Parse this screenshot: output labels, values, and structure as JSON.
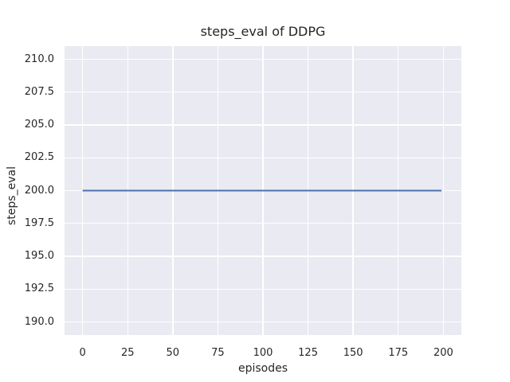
{
  "figure": {
    "title": "steps_eval of DDPG",
    "xlabel": "episodes",
    "ylabel": "steps_eval"
  },
  "chart_data": {
    "type": "line",
    "title": "steps_eval of DDPG",
    "xlabel": "episodes",
    "ylabel": "steps_eval",
    "xlim": [
      -10,
      210
    ],
    "ylim": [
      189,
      211
    ],
    "xticks": [
      0,
      25,
      50,
      75,
      100,
      125,
      150,
      175,
      200
    ],
    "xtick_labels": [
      "0",
      "25",
      "50",
      "75",
      "100",
      "125",
      "150",
      "175",
      "200"
    ],
    "yticks": [
      190.0,
      192.5,
      195.0,
      197.5,
      200.0,
      202.5,
      205.0,
      207.5,
      210.0
    ],
    "ytick_labels": [
      "190.0",
      "192.5",
      "195.0",
      "197.5",
      "200.0",
      "202.5",
      "205.0",
      "207.5",
      "210.0"
    ],
    "grid": true,
    "series": [
      {
        "name": "DDPG",
        "x": [
          0,
          199
        ],
        "y": [
          200,
          200
        ],
        "color": "#4C72B0",
        "line_width": 2
      }
    ],
    "colors": {
      "plot_background": "#EAEAF2",
      "gridline": "#FFFFFF",
      "text": "#262626",
      "figure_background": "#FFFFFF"
    }
  }
}
